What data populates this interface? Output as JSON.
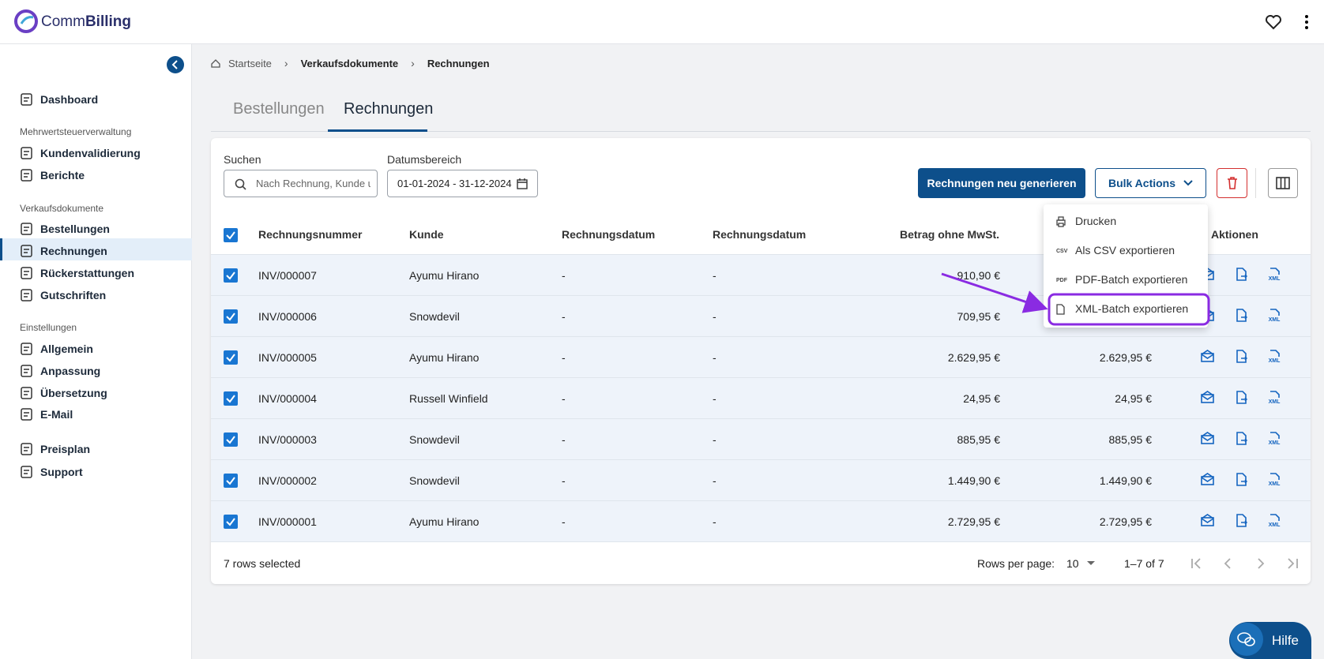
{
  "header": {
    "brand_part1": "Comm",
    "brand_part2": "Billing"
  },
  "sidebar": [
    {
      "label": "Dashboard"
    },
    {
      "section": "Mehrwertsteuerverwaltung"
    },
    {
      "label": "Kundenvalidierung"
    },
    {
      "label": "Berichte"
    },
    {
      "section": "Verkaufsdokumente"
    },
    {
      "label": "Bestellungen"
    },
    {
      "label": "Rechnungen",
      "active": true
    },
    {
      "label": "Rückerstattungen"
    },
    {
      "label": "Gutschriften"
    },
    {
      "section": "Einstellungen"
    },
    {
      "label": "Allgemein"
    },
    {
      "label": "Anpassung"
    },
    {
      "label": "Übersetzung"
    },
    {
      "label": "E-Mail"
    },
    {
      "label": "Preisplan"
    },
    {
      "label": "Support"
    }
  ],
  "breadcrumb": [
    "Startseite",
    "Verkaufsdokumente",
    "Rechnungen"
  ],
  "tabs": [
    {
      "label": "Bestellungen"
    },
    {
      "label": "Rechnungen",
      "active": true
    }
  ],
  "filters": {
    "search_label": "Suchen",
    "search_placeholder": "Nach Rechnung, Kunde u",
    "date_label": "Datumsbereich",
    "date_value": "01-01-2024 - 31-12-2024"
  },
  "buttons": {
    "regenerate": "Rechnungen neu generieren",
    "bulk": "Bulk Actions"
  },
  "menu": [
    {
      "label": "Drucken"
    },
    {
      "label": "Als CSV exportieren",
      "icon": "CSV"
    },
    {
      "label": "PDF-Batch exportieren",
      "icon": "PDF"
    },
    {
      "label": "XML-Batch exportieren",
      "highlighted": true
    }
  ],
  "table": {
    "columns": [
      "Rechnungsnummer",
      "Kunde",
      "Rechnungsdatum",
      "Rechnungsdatum",
      "Betrag ohne MwSt.",
      "Aktionen"
    ],
    "rows": [
      [
        "INV/000007",
        "Ayumu Hirano",
        "-",
        "-",
        "910,90 €",
        null
      ],
      [
        "INV/000006",
        "Snowdevil",
        "-",
        "-",
        "709,95 €",
        null
      ],
      [
        "INV/000005",
        "Ayumu Hirano",
        "-",
        "-",
        "2.629,95 €",
        "2.629,95 €"
      ],
      [
        "INV/000004",
        "Russell Winfield",
        "-",
        "-",
        "24,95 €",
        "24,95 €"
      ],
      [
        "INV/000003",
        "Snowdevil",
        "-",
        "-",
        "885,95 €",
        "885,95 €"
      ],
      [
        "INV/000002",
        "Snowdevil",
        "-",
        "-",
        "1.449,90 €",
        "1.449,90 €"
      ],
      [
        "INV/000001",
        "Ayumu Hirano",
        "-",
        "-",
        "2.729,95 €",
        "2.729,95 €"
      ]
    ]
  },
  "footer": {
    "selected": "7 rows selected",
    "rows_per_page_label": "Rows per page:",
    "rows_per_page": "10",
    "range": "1–7 of 7"
  },
  "help": "Hilfe"
}
